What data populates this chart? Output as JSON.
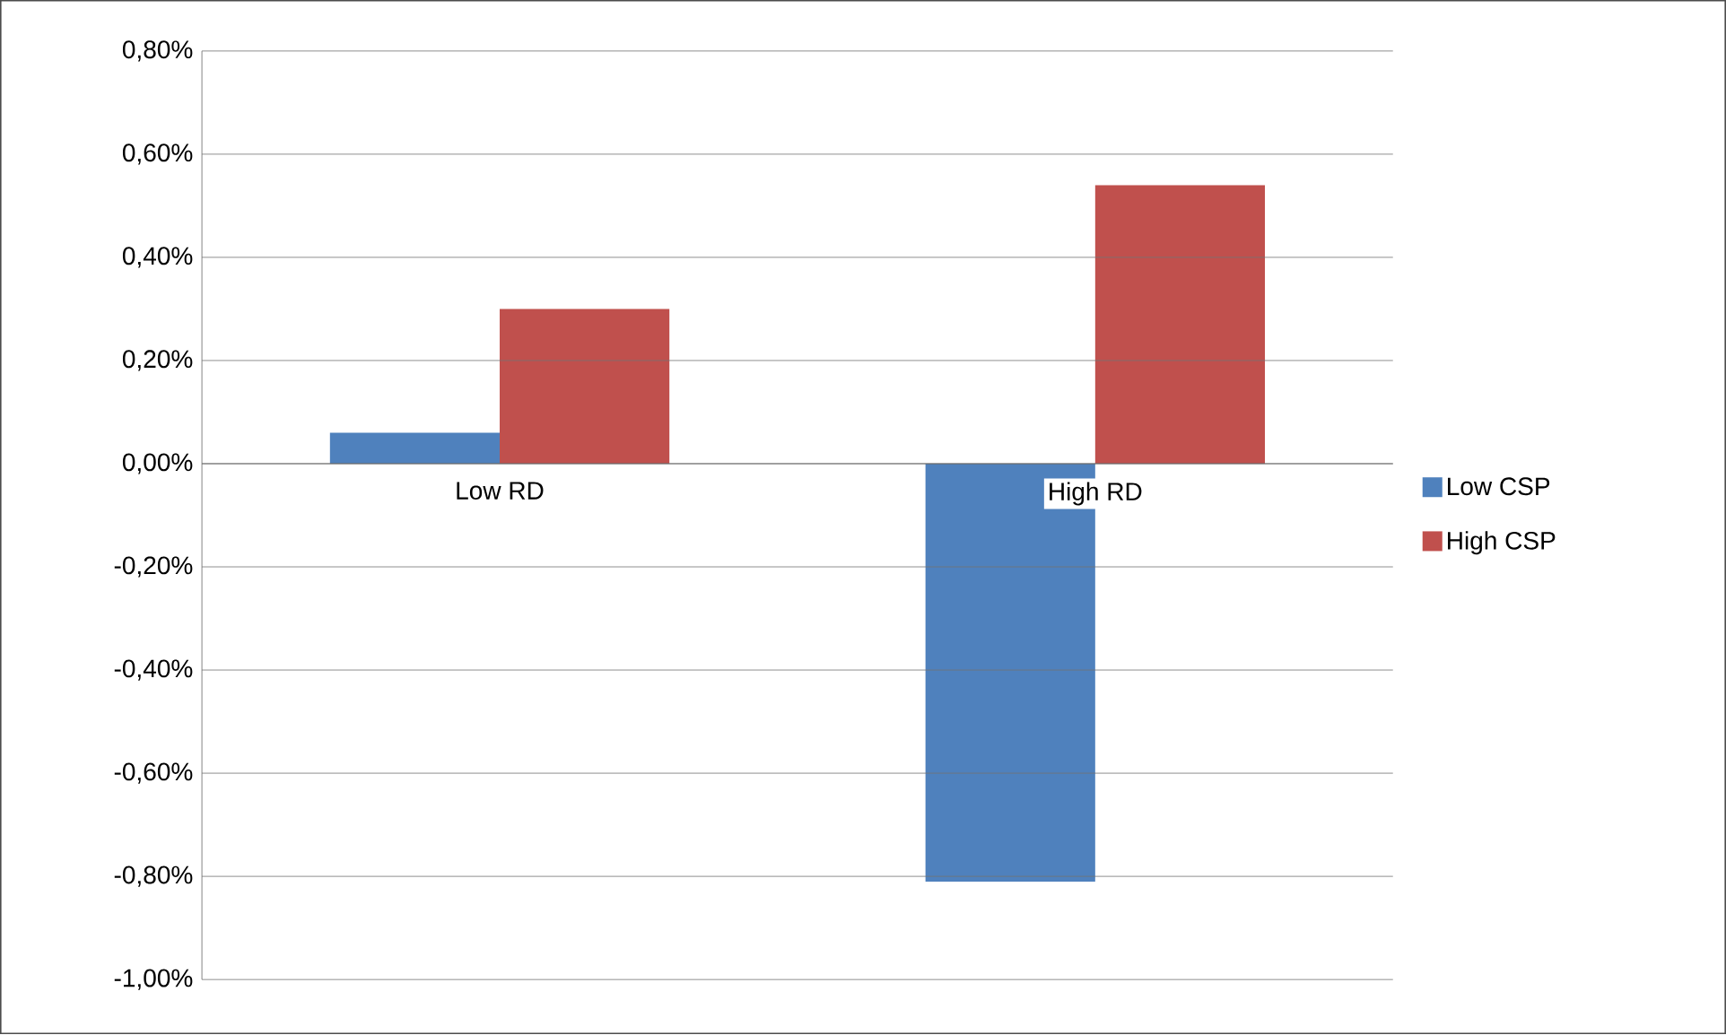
{
  "chart_data": {
    "type": "bar",
    "categories": [
      "Low RD",
      "High RD"
    ],
    "series": [
      {
        "name": "Low CSP",
        "color": "#4f81bd",
        "values": [
          0.06,
          -0.81
        ]
      },
      {
        "name": "High CSP",
        "color": "#c0504d",
        "values": [
          0.3,
          0.54
        ]
      }
    ],
    "ylim": [
      -1.0,
      0.8
    ],
    "yticks": [
      {
        "value": -1.0,
        "label": "-1,00%"
      },
      {
        "value": -0.8,
        "label": "-0,80%"
      },
      {
        "value": -0.6,
        "label": "-0,60%"
      },
      {
        "value": -0.4,
        "label": "-0,40%"
      },
      {
        "value": -0.2,
        "label": "-0,20%"
      },
      {
        "value": 0,
        "label": "0,00%"
      },
      {
        "value": 0.2,
        "label": "0,20%"
      },
      {
        "value": 0.4,
        "label": "0,40%"
      },
      {
        "value": 0.6,
        "label": "0,60%"
      },
      {
        "value": 0.8,
        "label": "0,80%"
      }
    ],
    "grid": "y",
    "legend": "right"
  }
}
